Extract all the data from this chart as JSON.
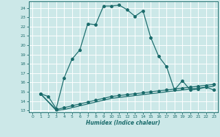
{
  "xlabel": "Humidex (Indice chaleur)",
  "bg_color": "#cce8e8",
  "grid_color": "#ffffff",
  "line_color": "#1a6b6b",
  "xlim": [
    -0.5,
    23.5
  ],
  "ylim": [
    12.8,
    24.7
  ],
  "xticks": [
    0,
    1,
    2,
    3,
    4,
    5,
    6,
    7,
    8,
    9,
    10,
    11,
    12,
    13,
    14,
    15,
    16,
    17,
    18,
    19,
    20,
    21,
    22,
    23
  ],
  "yticks": [
    13,
    14,
    15,
    16,
    17,
    18,
    19,
    20,
    21,
    22,
    23,
    24
  ],
  "line1_x": [
    1,
    2,
    3,
    4,
    5,
    6,
    7,
    8,
    9,
    10,
    11,
    12,
    13,
    14,
    15,
    16,
    17,
    18,
    19,
    20,
    21,
    22,
    23
  ],
  "line1_y": [
    14.8,
    14.5,
    13.2,
    16.5,
    18.5,
    19.5,
    22.3,
    22.2,
    24.2,
    24.2,
    24.3,
    23.8,
    23.1,
    23.7,
    20.8,
    18.8,
    17.7,
    15.2,
    16.2,
    15.2,
    15.3,
    15.5,
    15.2
  ],
  "line2_x": [
    1,
    3,
    4,
    5,
    6,
    7,
    8,
    9,
    10,
    11,
    12,
    13,
    14,
    15,
    16,
    17,
    18,
    19,
    20,
    21,
    22,
    23
  ],
  "line2_y": [
    14.8,
    13.1,
    13.3,
    13.5,
    13.7,
    13.9,
    14.1,
    14.3,
    14.5,
    14.6,
    14.7,
    14.8,
    14.9,
    15.0,
    15.1,
    15.2,
    15.3,
    15.4,
    15.5,
    15.6,
    15.7,
    15.8
  ],
  "line3_x": [
    1,
    3,
    4,
    5,
    6,
    7,
    8,
    9,
    10,
    11,
    12,
    13,
    14,
    15,
    16,
    17,
    18,
    19,
    20,
    21,
    22,
    23
  ],
  "line3_y": [
    14.8,
    13.0,
    13.1,
    13.3,
    13.5,
    13.7,
    13.9,
    14.1,
    14.3,
    14.4,
    14.5,
    14.6,
    14.7,
    14.8,
    14.9,
    15.0,
    15.1,
    15.2,
    15.3,
    15.4,
    15.5,
    15.6
  ],
  "marker_size": 2.5,
  "line_width": 0.9
}
